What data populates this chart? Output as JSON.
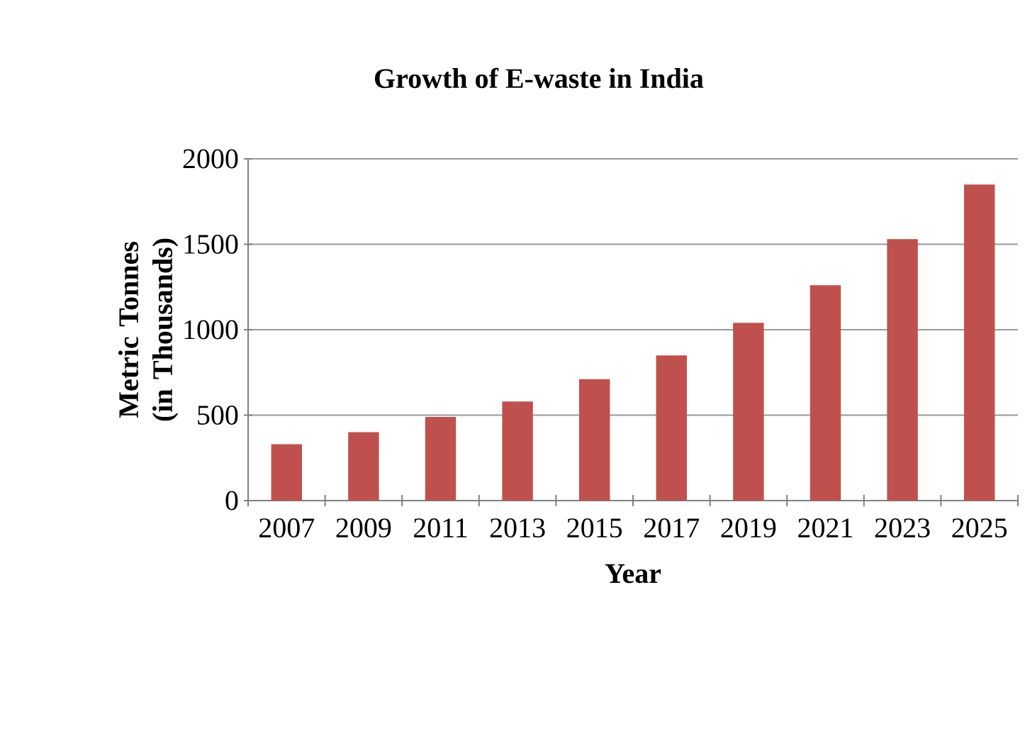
{
  "chart_data": {
    "type": "bar",
    "title": "Growth of E-waste in India",
    "xlabel": "Year",
    "ylabel": "Metric Tonnes (in Thousands)",
    "categories": [
      "2007",
      "2009",
      "2011",
      "2013",
      "2015",
      "2017",
      "2019",
      "2021",
      "2023",
      "2025"
    ],
    "values": [
      330,
      400,
      490,
      580,
      710,
      850,
      1040,
      1260,
      1530,
      1850
    ],
    "color": "#c0504d",
    "ylim": [
      0,
      2000
    ],
    "yticks": [
      0,
      500,
      1000,
      1500,
      2000
    ],
    "grid": "y"
  }
}
